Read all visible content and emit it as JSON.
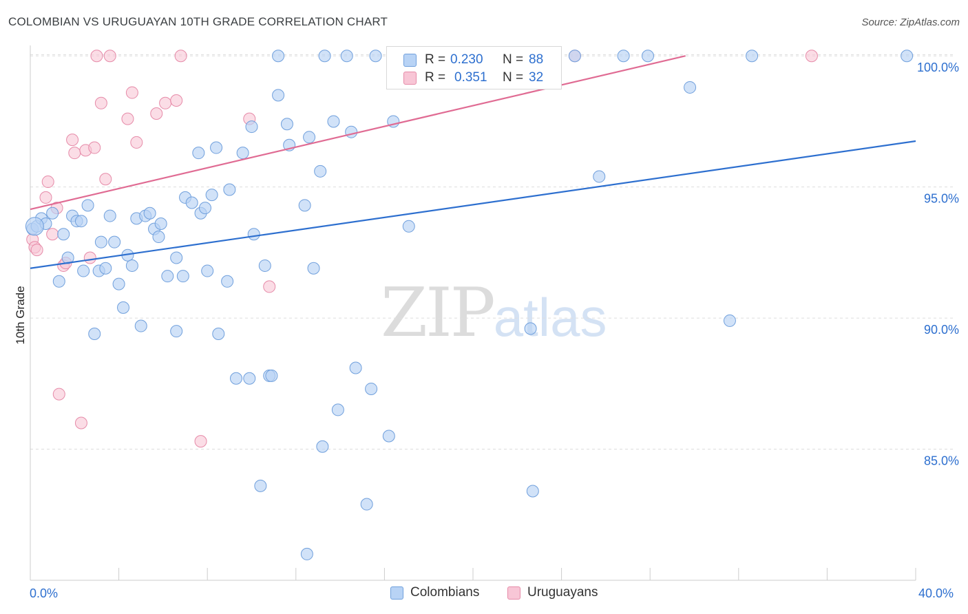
{
  "title": "COLOMBIAN VS URUGUAYAN 10TH GRADE CORRELATION CHART",
  "source": "Source: ZipAtlas.com",
  "watermark": {
    "part1": "ZIP",
    "part2": "atlas"
  },
  "colors": {
    "blue_fill": "#b8d3f5",
    "blue_stroke": "#6f9fdc",
    "blue_line": "#2d6fcf",
    "pink_fill": "#f8c6d6",
    "pink_stroke": "#e68aa8",
    "pink_line": "#e06b93",
    "grid": "#dddddd",
    "axis_text": "#2d6fcf"
  },
  "legend_top": {
    "rows": [
      {
        "r_label": "R =",
        "r_value": "0.230",
        "n_label": "N =",
        "n_value": "88"
      },
      {
        "r_label": "R =",
        "r_value": "0.351",
        "n_label": "N =",
        "n_value": "32"
      }
    ]
  },
  "legend_bottom": [
    "Colombians",
    "Uruguayans"
  ],
  "x_axis_labels": {
    "min": "0.0%",
    "max": "40.0%"
  },
  "chart_data": {
    "type": "scatter",
    "title": "COLOMBIAN VS URUGUAYAN 10TH GRADE CORRELATION CHART",
    "xlabel": "",
    "ylabel": "10th Grade",
    "xlim": [
      0,
      40
    ],
    "ylim": [
      80.0,
      100.4
    ],
    "y_ticks": [
      {
        "value": 100,
        "label": "100.0%"
      },
      {
        "value": 95,
        "label": "95.0%"
      },
      {
        "value": 90,
        "label": "90.0%"
      },
      {
        "value": 85,
        "label": "85.0%"
      }
    ],
    "x_ticks": [
      0,
      4,
      8,
      12,
      16,
      20,
      24,
      28,
      32,
      36,
      40
    ],
    "grid": true,
    "series": [
      {
        "name": "Colombians",
        "r": 0.23,
        "n": 88,
        "trend": {
          "x": [
            0,
            40
          ],
          "y": [
            91.9,
            96.75
          ]
        },
        "points": [
          [
            0.1,
            93.4
          ],
          [
            0.3,
            93.5
          ],
          [
            0.5,
            93.8
          ],
          [
            0.7,
            93.6
          ],
          [
            1.0,
            94.0
          ],
          [
            1.3,
            91.4
          ],
          [
            1.5,
            93.2
          ],
          [
            1.7,
            92.3
          ],
          [
            1.9,
            93.9
          ],
          [
            2.1,
            93.7
          ],
          [
            2.3,
            93.7
          ],
          [
            2.4,
            91.8
          ],
          [
            2.6,
            94.3
          ],
          [
            2.9,
            89.4
          ],
          [
            3.1,
            91.8
          ],
          [
            3.2,
            92.9
          ],
          [
            3.4,
            91.9
          ],
          [
            3.6,
            93.9
          ],
          [
            3.8,
            92.9
          ],
          [
            4.0,
            91.3
          ],
          [
            4.2,
            90.4
          ],
          [
            4.4,
            92.4
          ],
          [
            4.6,
            92.0
          ],
          [
            4.8,
            93.8
          ],
          [
            5.0,
            89.7
          ],
          [
            5.2,
            93.9
          ],
          [
            5.4,
            94.0
          ],
          [
            5.6,
            93.4
          ],
          [
            5.8,
            93.1
          ],
          [
            5.9,
            93.6
          ],
          [
            6.2,
            91.6
          ],
          [
            6.6,
            92.3
          ],
          [
            6.6,
            89.5
          ],
          [
            6.9,
            91.6
          ],
          [
            7.0,
            94.6
          ],
          [
            7.3,
            94.4
          ],
          [
            7.6,
            96.3
          ],
          [
            7.7,
            94.0
          ],
          [
            7.9,
            94.2
          ],
          [
            8.0,
            91.8
          ],
          [
            8.2,
            94.7
          ],
          [
            8.4,
            96.5
          ],
          [
            8.5,
            89.4
          ],
          [
            8.9,
            91.4
          ],
          [
            9.0,
            94.9
          ],
          [
            9.3,
            87.7
          ],
          [
            9.6,
            96.3
          ],
          [
            9.9,
            87.7
          ],
          [
            10.0,
            97.3
          ],
          [
            10.1,
            93.2
          ],
          [
            10.4,
            83.6
          ],
          [
            10.6,
            92.0
          ],
          [
            10.8,
            87.8
          ],
          [
            10.9,
            87.8
          ],
          [
            11.2,
            100.0
          ],
          [
            11.2,
            98.5
          ],
          [
            11.6,
            97.4
          ],
          [
            11.7,
            96.6
          ],
          [
            12.4,
            94.3
          ],
          [
            12.5,
            81.0
          ],
          [
            12.6,
            96.9
          ],
          [
            12.8,
            91.9
          ],
          [
            13.1,
            95.6
          ],
          [
            13.2,
            85.1
          ],
          [
            13.3,
            100.0
          ],
          [
            13.7,
            97.5
          ],
          [
            13.9,
            86.5
          ],
          [
            14.3,
            100.0
          ],
          [
            14.5,
            97.1
          ],
          [
            14.7,
            88.1
          ],
          [
            15.2,
            82.9
          ],
          [
            15.4,
            87.3
          ],
          [
            15.6,
            100.0
          ],
          [
            16.2,
            85.5
          ],
          [
            16.4,
            97.5
          ],
          [
            17.1,
            93.5
          ],
          [
            22.6,
            89.6
          ],
          [
            22.7,
            83.4
          ],
          [
            23.7,
            100.0
          ],
          [
            24.6,
            100.0
          ],
          [
            25.7,
            95.4
          ],
          [
            26.8,
            100.0
          ],
          [
            27.9,
            100.0
          ],
          [
            29.8,
            98.8
          ],
          [
            31.6,
            89.9
          ],
          [
            32.6,
            100.0
          ],
          [
            39.6,
            100.0
          ],
          [
            0.2,
            93.5
          ]
        ]
      },
      {
        "name": "Uruguayans",
        "r": 0.351,
        "n": 32,
        "trend": {
          "x": [
            0,
            29.6
          ],
          "y": [
            94.15,
            100.0
          ]
        },
        "points": [
          [
            0.1,
            93.0
          ],
          [
            0.2,
            92.7
          ],
          [
            0.3,
            92.6
          ],
          [
            0.7,
            94.6
          ],
          [
            0.8,
            95.2
          ],
          [
            1.0,
            93.2
          ],
          [
            1.2,
            94.2
          ],
          [
            1.3,
            87.1
          ],
          [
            1.5,
            92.0
          ],
          [
            1.6,
            92.1
          ],
          [
            1.9,
            96.8
          ],
          [
            2.0,
            96.3
          ],
          [
            2.3,
            86.0
          ],
          [
            2.5,
            96.4
          ],
          [
            2.7,
            92.3
          ],
          [
            2.9,
            96.5
          ],
          [
            3.0,
            100.0
          ],
          [
            3.2,
            98.2
          ],
          [
            3.4,
            95.3
          ],
          [
            3.6,
            100.0
          ],
          [
            4.4,
            97.6
          ],
          [
            4.6,
            98.6
          ],
          [
            4.8,
            96.7
          ],
          [
            5.7,
            97.8
          ],
          [
            6.1,
            98.2
          ],
          [
            6.6,
            98.3
          ],
          [
            6.8,
            100.0
          ],
          [
            7.7,
            85.3
          ],
          [
            9.9,
            97.6
          ],
          [
            10.8,
            91.2
          ],
          [
            24.6,
            100.0
          ],
          [
            35.3,
            100.0
          ]
        ]
      }
    ]
  }
}
